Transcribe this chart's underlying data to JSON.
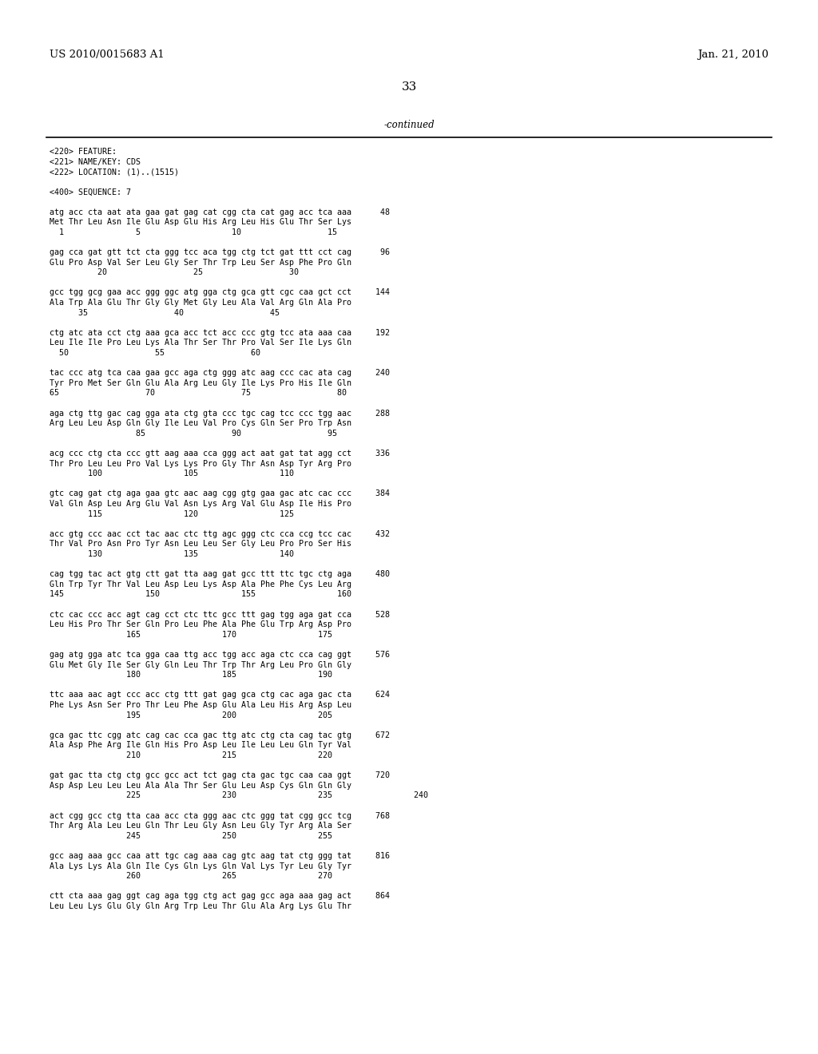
{
  "bg_color": "#ffffff",
  "top_left_text": "US 2010/0015683 A1",
  "top_right_text": "Jan. 21, 2010",
  "page_number": "33",
  "continued_text": "-continued",
  "font_size_header": 9.5,
  "font_size_page": 11,
  "font_size_mono": 7.2,
  "content": [
    "<220> FEATURE:",
    "<221> NAME/KEY: CDS",
    "<222> LOCATION: (1)..(1515)",
    "",
    "<400> SEQUENCE: 7",
    "",
    "atg acc cta aat ata gaa gat gag cat cgg cta cat gag acc tca aaa      48",
    "Met Thr Leu Asn Ile Glu Asp Glu His Arg Leu His Glu Thr Ser Lys",
    "  1               5                   10                  15",
    "",
    "gag cca gat gtt tct cta ggg tcc aca tgg ctg tct gat ttt cct cag      96",
    "Glu Pro Asp Val Ser Leu Gly Ser Thr Trp Leu Ser Asp Phe Pro Gln",
    "          20                  25                  30",
    "",
    "gcc tgg gcg gaa acc ggg ggc atg gga ctg gca gtt cgc caa gct cct     144",
    "Ala Trp Ala Glu Thr Gly Gly Met Gly Leu Ala Val Arg Gln Ala Pro",
    "      35                  40                  45",
    "",
    "ctg atc ata cct ctg aaa gca acc tct acc ccc gtg tcc ata aaa caa     192",
    "Leu Ile Ile Pro Leu Lys Ala Thr Ser Thr Pro Val Ser Ile Lys Gln",
    "  50                  55                  60",
    "",
    "tac ccc atg tca caa gaa gcc aga ctg ggg atc aag ccc cac ata cag     240",
    "Tyr Pro Met Ser Gln Glu Ala Arg Leu Gly Ile Lys Pro His Ile Gln",
    "65                  70                  75                  80",
    "",
    "aga ctg ttg gac cag gga ata ctg gta ccc tgc cag tcc ccc tgg aac     288",
    "Arg Leu Leu Asp Gln Gly Ile Leu Val Pro Cys Gln Ser Pro Trp Asn",
    "                  85                  90                  95",
    "",
    "acg ccc ctg cta ccc gtt aag aaa cca ggg act aat gat tat agg cct     336",
    "Thr Pro Leu Leu Pro Val Lys Lys Pro Gly Thr Asn Asp Tyr Arg Pro",
    "        100                 105                 110",
    "",
    "gtc cag gat ctg aga gaa gtc aac aag cgg gtg gaa gac atc cac ccc     384",
    "Val Gln Asp Leu Arg Glu Val Asn Lys Arg Val Glu Asp Ile His Pro",
    "        115                 120                 125",
    "",
    "acc gtg ccc aac cct tac aac ctc ttg agc ggg ctc cca ccg tcc cac     432",
    "Thr Val Pro Asn Pro Tyr Asn Leu Leu Ser Gly Leu Pro Pro Ser His",
    "        130                 135                 140",
    "",
    "cag tgg tac act gtg ctt gat tta aag gat gcc ttt ttc tgc ctg aga     480",
    "Gln Trp Tyr Thr Val Leu Asp Leu Lys Asp Ala Phe Phe Cys Leu Arg",
    "145                 150                 155                 160",
    "",
    "ctc cac ccc acc agt cag cct ctc ttc gcc ttt gag tgg aga gat cca     528",
    "Leu His Pro Thr Ser Gln Pro Leu Phe Ala Phe Glu Trp Arg Asp Pro",
    "                165                 170                 175",
    "",
    "gag atg gga atc tca gga caa ttg acc tgg acc aga ctc cca cag ggt     576",
    "Glu Met Gly Ile Ser Gly Gln Leu Thr Trp Thr Arg Leu Pro Gln Gly",
    "                180                 185                 190",
    "",
    "ttc aaa aac agt ccc acc ctg ttt gat gag gca ctg cac aga gac cta     624",
    "Phe Lys Asn Ser Pro Thr Leu Phe Asp Glu Ala Leu His Arg Asp Leu",
    "                195                 200                 205",
    "",
    "gca gac ttc cgg atc cag cac cca gac ttg atc ctg cta cag tac gtg     672",
    "Ala Asp Phe Arg Ile Gln His Pro Asp Leu Ile Leu Leu Gln Tyr Val",
    "                210                 215                 220",
    "",
    "gat gac tta ctg ctg gcc gcc act tct gag cta gac tgc caa caa ggt     720",
    "Asp Asp Leu Leu Leu Ala Ala Thr Ser Glu Leu Asp Cys Gln Gln Gly",
    "                225                 230                 235                 240",
    "",
    "act cgg gcc ctg tta caa acc cta ggg aac ctc ggg tat cgg gcc tcg     768",
    "Thr Arg Ala Leu Leu Gln Thr Leu Gly Asn Leu Gly Tyr Arg Ala Ser",
    "                245                 250                 255",
    "",
    "gcc aag aaa gcc caa att tgc cag aaa cag gtc aag tat ctg ggg tat     816",
    "Ala Lys Lys Ala Gln Ile Cys Gln Lys Gln Val Lys Tyr Leu Gly Tyr",
    "                260                 265                 270",
    "",
    "ctt cta aaa gag ggt cag aga tgg ctg act gag gcc aga aaa gag act     864",
    "Leu Leu Lys Glu Gly Gln Arg Trp Leu Thr Glu Ala Arg Lys Glu Thr"
  ]
}
